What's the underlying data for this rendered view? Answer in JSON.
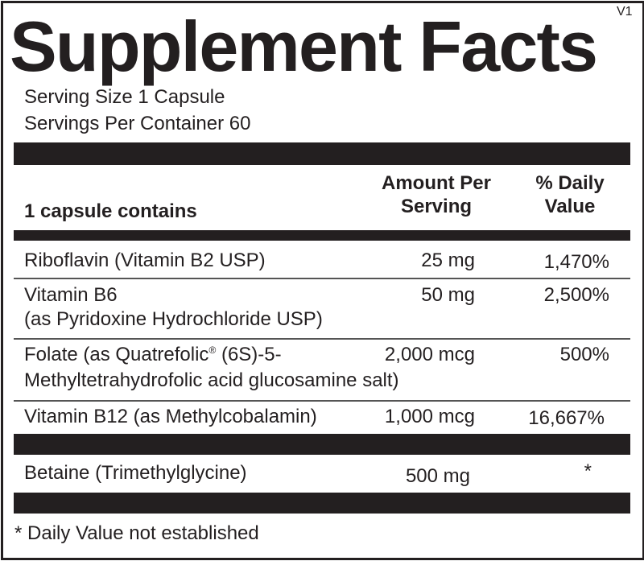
{
  "title": "Supplement Facts",
  "version": "V1",
  "serving_size": "Serving Size 1 Capsule",
  "servings_per_container": "Servings Per Container 60",
  "header": {
    "contains": "1 capsule contains",
    "amount_line1": "Amount Per",
    "amount_line2": "Serving",
    "dv_line1": "% Daily",
    "dv_line2": "Value"
  },
  "rows": [
    {
      "name_line1": "Riboflavin (Vitamin B2 USP)",
      "amount": "25 mg",
      "dv": "1,470%"
    },
    {
      "name_line1": "Vitamin B6",
      "name_line2": "(as Pyridoxine Hydrochloride USP)",
      "amount": "50 mg",
      "dv": "2,500%"
    },
    {
      "name_line1": "Folate (as Quatrefolic",
      "registered": "®",
      "name_line1b": " (6S)-5-",
      "name_line2": "Methyltetrahydrofolic acid glucosamine salt)",
      "amount": "2,000 mcg",
      "dv": "500%"
    },
    {
      "name_line1": "Vitamin B12 (as Methylcobalamin)",
      "amount": "1,000 mcg",
      "dv": "16,667%"
    },
    {
      "name_line1": "Betaine (Trimethylglycine)",
      "amount": "500 mg",
      "dv": "*"
    }
  ],
  "footnote": "* Daily Value not established"
}
